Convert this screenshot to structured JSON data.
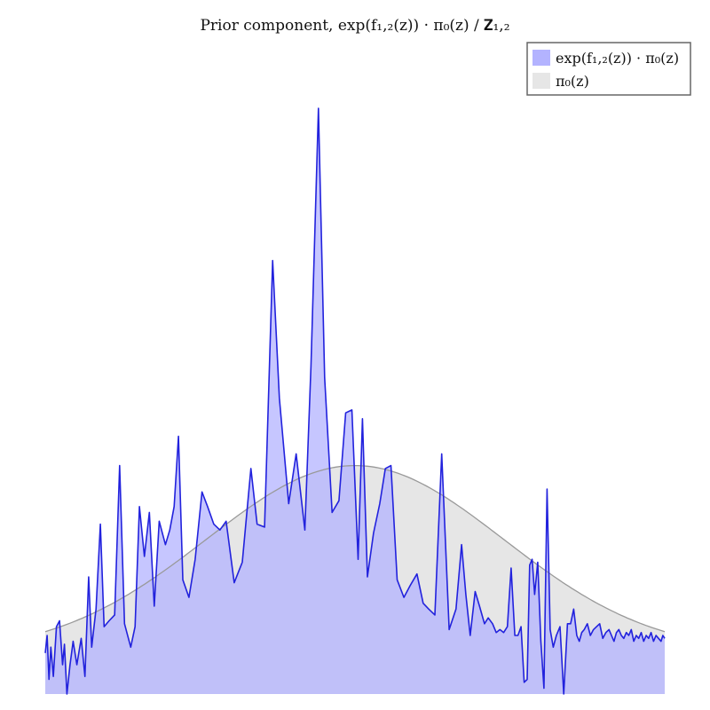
{
  "chart_data": {
    "type": "area",
    "title": "Prior component, exp(f₁,₂(z)) · π₀(z) / 𝐙₁,₂",
    "xlabel": "",
    "ylabel": "",
    "axes_visible": false,
    "grid": false,
    "legend_position": "top-right",
    "xlim": [
      0,
      1
    ],
    "ylim": [
      0,
      1
    ],
    "series": [
      {
        "name": "exp(f₁,₂(z)) · π₀(z)",
        "color": "#2222dd",
        "fill": "#b3b3ff",
        "x": [
          0.0,
          0.003,
          0.006,
          0.009,
          0.013,
          0.018,
          0.023,
          0.028,
          0.031,
          0.035,
          0.04,
          0.045,
          0.051,
          0.058,
          0.064,
          0.07,
          0.075,
          0.082,
          0.089,
          0.095,
          0.103,
          0.112,
          0.12,
          0.128,
          0.138,
          0.145,
          0.152,
          0.16,
          0.168,
          0.176,
          0.184,
          0.194,
          0.201,
          0.208,
          0.215,
          0.222,
          0.232,
          0.242,
          0.253,
          0.262,
          0.272,
          0.282,
          0.292,
          0.305,
          0.318,
          0.332,
          0.342,
          0.354,
          0.367,
          0.378,
          0.393,
          0.405,
          0.419,
          0.429,
          0.441,
          0.451,
          0.463,
          0.474,
          0.485,
          0.495,
          0.505,
          0.512,
          0.52,
          0.53,
          0.54,
          0.549,
          0.558,
          0.568,
          0.579,
          0.589,
          0.6,
          0.61,
          0.619,
          0.629,
          0.64,
          0.652,
          0.663,
          0.672,
          0.679,
          0.686,
          0.694,
          0.701,
          0.709,
          0.715,
          0.722,
          0.728,
          0.734,
          0.74,
          0.746,
          0.752,
          0.758,
          0.763,
          0.768,
          0.773,
          0.778,
          0.782,
          0.786,
          0.79,
          0.795,
          0.8,
          0.805,
          0.81,
          0.815,
          0.82,
          0.825,
          0.831,
          0.837,
          0.843,
          0.848,
          0.853,
          0.858,
          0.862,
          0.866,
          0.87,
          0.875,
          0.88,
          0.885,
          0.89,
          0.895,
          0.9,
          0.905,
          0.91,
          0.914,
          0.918,
          0.922,
          0.926,
          0.93,
          0.934,
          0.938,
          0.942,
          0.946,
          0.95,
          0.954,
          0.958,
          0.962,
          0.966,
          0.97,
          0.974,
          0.978,
          0.982,
          0.986,
          0.99,
          0.994,
          0.997,
          1.0
        ],
        "y": [
          0.07,
          0.1,
          0.025,
          0.08,
          0.03,
          0.115,
          0.125,
          0.05,
          0.085,
          0.0,
          0.05,
          0.09,
          0.05,
          0.095,
          0.03,
          0.2,
          0.08,
          0.145,
          0.29,
          0.115,
          0.125,
          0.135,
          0.39,
          0.12,
          0.08,
          0.115,
          0.32,
          0.235,
          0.31,
          0.15,
          0.295,
          0.255,
          0.28,
          0.32,
          0.44,
          0.195,
          0.165,
          0.23,
          0.345,
          0.32,
          0.29,
          0.28,
          0.295,
          0.19,
          0.225,
          0.385,
          0.29,
          0.285,
          0.74,
          0.505,
          0.325,
          0.41,
          0.28,
          0.56,
          1.0,
          0.54,
          0.31,
          0.33,
          0.48,
          0.485,
          0.23,
          0.47,
          0.2,
          0.275,
          0.325,
          0.385,
          0.39,
          0.195,
          0.165,
          0.185,
          0.205,
          0.155,
          0.145,
          0.135,
          0.41,
          0.11,
          0.145,
          0.255,
          0.17,
          0.1,
          0.175,
          0.15,
          0.12,
          0.13,
          0.12,
          0.105,
          0.11,
          0.105,
          0.115,
          0.215,
          0.1,
          0.1,
          0.115,
          0.02,
          0.025,
          0.22,
          0.23,
          0.17,
          0.225,
          0.09,
          0.01,
          0.35,
          0.11,
          0.08,
          0.1,
          0.115,
          0.0,
          0.12,
          0.12,
          0.145,
          0.1,
          0.09,
          0.105,
          0.11,
          0.12,
          0.1,
          0.11,
          0.115,
          0.12,
          0.095,
          0.105,
          0.11,
          0.1,
          0.09,
          0.105,
          0.11,
          0.1,
          0.095,
          0.105,
          0.1,
          0.11,
          0.09,
          0.1,
          0.095,
          0.105,
          0.09,
          0.1,
          0.095,
          0.105,
          0.09,
          0.1,
          0.095,
          0.09,
          0.1,
          0.095
        ]
      },
      {
        "name": "π₀(z)",
        "color": "#999999",
        "fill": "#e6e6e6",
        "distribution": "gaussian",
        "mean": 0.5,
        "std": 0.24,
        "peak": 0.39,
        "baseline": 0.07
      }
    ]
  }
}
